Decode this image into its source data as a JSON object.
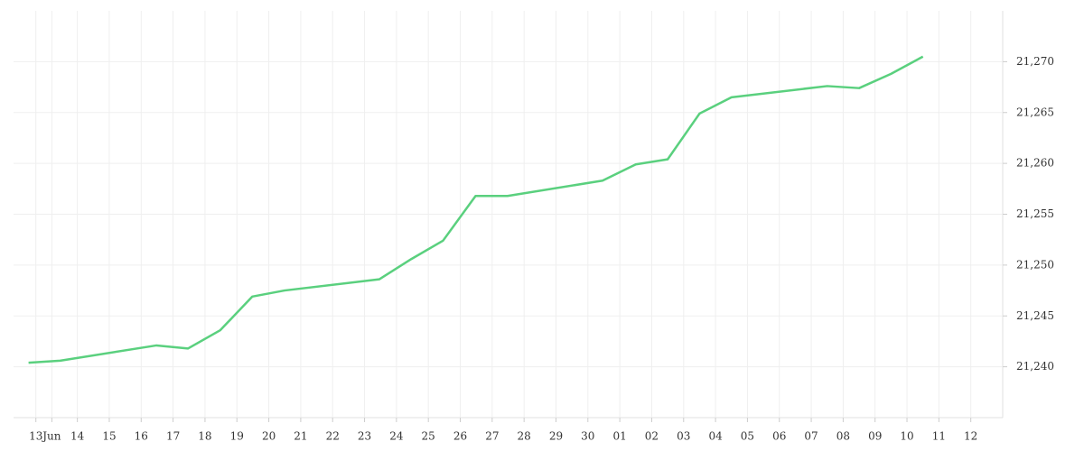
{
  "chart_data": {
    "type": "line",
    "series": [
      {
        "color": "#5ad07e",
        "x": [
          -0.53,
          0.46,
          3.48,
          4.47,
          5.48,
          6.48,
          7.49,
          10.46,
          11.47,
          12.46,
          13.48,
          14.48,
          17.46,
          18.5,
          19.5,
          20.5,
          21.5,
          24.5,
          25.5,
          26.5,
          27.5
        ],
        "values": [
          21240.4,
          21240.6,
          21242.1,
          21241.8,
          21243.6,
          21246.9,
          21247.5,
          21248.6,
          21250.6,
          21252.4,
          21256.8,
          21256.8,
          21258.3,
          21259.9,
          21260.4,
          21264.9,
          21266.5,
          21267.6,
          21267.4,
          21268.8,
          21270.5
        ]
      }
    ],
    "xlim": [
      -1,
      30
    ],
    "xticks": [
      {
        "value": -0.3,
        "label": "13"
      },
      {
        "value": 0.2,
        "label": "Jun"
      },
      {
        "value": 1,
        "label": "14"
      },
      {
        "value": 2,
        "label": "15"
      },
      {
        "value": 3,
        "label": "16"
      },
      {
        "value": 4,
        "label": "17"
      },
      {
        "value": 5,
        "label": "18"
      },
      {
        "value": 6,
        "label": "19"
      },
      {
        "value": 7,
        "label": "20"
      },
      {
        "value": 8,
        "label": "21"
      },
      {
        "value": 9,
        "label": "22"
      },
      {
        "value": 10,
        "label": "23"
      },
      {
        "value": 11,
        "label": "24"
      },
      {
        "value": 12,
        "label": "25"
      },
      {
        "value": 13,
        "label": "26"
      },
      {
        "value": 14,
        "label": "27"
      },
      {
        "value": 15,
        "label": "28"
      },
      {
        "value": 16,
        "label": "29"
      },
      {
        "value": 17,
        "label": "30"
      },
      {
        "value": 18,
        "label": "01"
      },
      {
        "value": 19,
        "label": "02"
      },
      {
        "value": 20,
        "label": "03"
      },
      {
        "value": 21,
        "label": "04"
      },
      {
        "value": 22,
        "label": "05"
      },
      {
        "value": 23,
        "label": "06"
      },
      {
        "value": 24,
        "label": "07"
      },
      {
        "value": 25,
        "label": "08"
      },
      {
        "value": 26,
        "label": "09"
      },
      {
        "value": 27,
        "label": "10"
      },
      {
        "value": 28,
        "label": "11"
      },
      {
        "value": 29,
        "label": "12"
      }
    ],
    "ylim": [
      21235,
      21275
    ],
    "yticks": [
      {
        "value": 21240,
        "label": "21,240"
      },
      {
        "value": 21245,
        "label": "21,245"
      },
      {
        "value": 21250,
        "label": "21,250"
      },
      {
        "value": 21255,
        "label": "21,255"
      },
      {
        "value": 21260,
        "label": "21,260"
      },
      {
        "value": 21265,
        "label": "21,265"
      },
      {
        "value": 21270,
        "label": "21,270"
      }
    ],
    "grid": true
  }
}
